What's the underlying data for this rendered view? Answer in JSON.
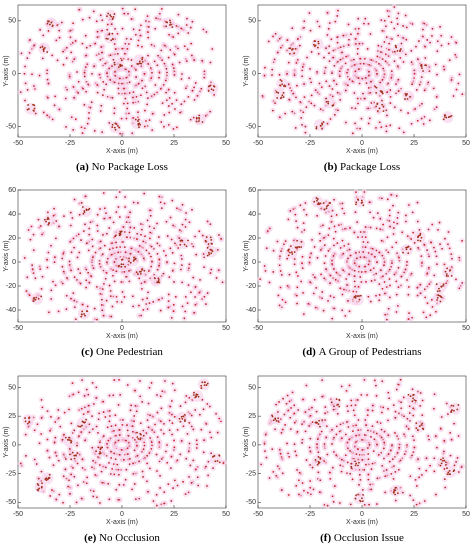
{
  "chart_data": [
    {
      "type": "scatter",
      "label": "(a)",
      "caption": "No Package Loss",
      "xlabel": "X-axis (m)",
      "ylabel": "Y-axis (m)",
      "xlim": [
        -50,
        50
      ],
      "ylim": [
        -60,
        65
      ],
      "xticks": [
        -50,
        -25,
        0,
        25,
        50
      ],
      "yticks": [
        -50,
        0,
        50
      ]
    },
    {
      "type": "scatter",
      "label": "(b)",
      "caption": "Package Loss",
      "xlabel": "X-axis (m)",
      "ylabel": "Y-axis (m)",
      "xlim": [
        -50,
        50
      ],
      "ylim": [
        -60,
        65
      ],
      "xticks": [
        -50,
        -25,
        0,
        25,
        50
      ],
      "yticks": [
        -50,
        0,
        50
      ]
    },
    {
      "type": "scatter",
      "label": "(c)",
      "caption": "One Pedestrian",
      "xlabel": "X-axis (m)",
      "ylabel": "Y-axis (m)",
      "xlim": [
        -50,
        50
      ],
      "ylim": [
        -50,
        60
      ],
      "xticks": [
        -50,
        0,
        50
      ],
      "yticks": [
        -40,
        -20,
        0,
        20,
        40,
        60
      ]
    },
    {
      "type": "scatter",
      "label": "(d)",
      "caption": "A Group of Pedestrians",
      "xlabel": "X-axis (m)",
      "ylabel": "Y-axis (m)",
      "xlim": [
        -50,
        50
      ],
      "ylim": [
        -50,
        60
      ],
      "xticks": [
        -50,
        0,
        50
      ],
      "yticks": [
        -40,
        -20,
        0,
        20,
        40,
        60
      ]
    },
    {
      "type": "scatter",
      "label": "(e)",
      "caption": "No Occlusion",
      "xlabel": "X-axis (m)",
      "ylabel": "Y-axis (m)",
      "xlim": [
        -50,
        50
      ],
      "ylim": [
        -55,
        60
      ],
      "xticks": [
        -50,
        -25,
        0,
        25,
        50
      ],
      "yticks": [
        -50,
        -25,
        0,
        25,
        50
      ]
    },
    {
      "type": "scatter",
      "label": "(f)",
      "caption": "Occlusion Issue",
      "xlabel": "X-axis (m)",
      "ylabel": "Y-axis (m)",
      "xlim": [
        -50,
        50
      ],
      "ylim": [
        -55,
        60
      ],
      "xticks": [
        -50,
        -25,
        0,
        25,
        50
      ],
      "yticks": [
        -50,
        -25,
        0,
        25,
        50
      ]
    }
  ]
}
